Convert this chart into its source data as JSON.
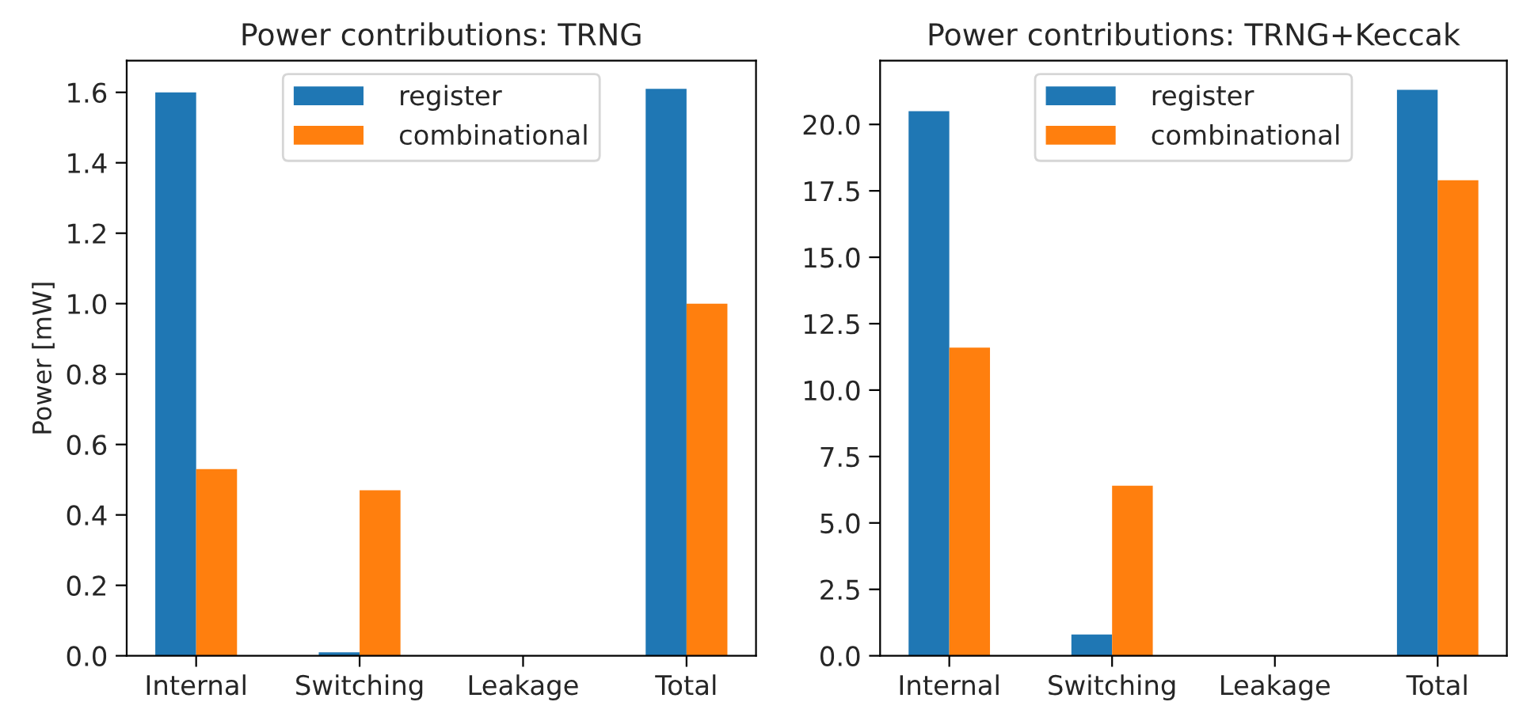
{
  "chart_data": [
    {
      "type": "bar",
      "title": "Power contributions: TRNG",
      "ylabel": "Power [mW]",
      "categories": [
        "Internal",
        "Switching",
        "Leakage",
        "Total"
      ],
      "series": [
        {
          "name": "register",
          "color": "#1f77b4",
          "values": [
            1.6,
            0.01,
            0,
            1.61
          ]
        },
        {
          "name": "combinational",
          "color": "#ff7f0e",
          "values": [
            0.53,
            0.47,
            0,
            1.0
          ]
        }
      ],
      "ylim": [
        0,
        1.69
      ],
      "yticks": [
        {
          "value": 0,
          "label": "0.0"
        },
        0.2,
        0.4,
        0.6,
        0.8,
        {
          "value": 1,
          "label": "1.0"
        },
        1.2,
        1.4,
        1.6
      ],
      "legend": "top"
    },
    {
      "type": "bar",
      "title": "Power contributions: TRNG+Keccak",
      "categories": [
        "Internal",
        "Switching",
        "Leakage",
        "Total"
      ],
      "series": [
        {
          "name": "register",
          "color": "#1f77b4",
          "values": [
            20.5,
            0.8,
            0,
            21.3
          ]
        },
        {
          "name": "combinational",
          "color": "#ff7f0e",
          "values": [
            11.6,
            6.4,
            0,
            17.9
          ]
        }
      ],
      "ylim": [
        0,
        22.4
      ],
      "yticks": [
        {
          "value": 0,
          "label": "0.0"
        },
        2.5,
        {
          "value": 5,
          "label": "5.0"
        },
        7.5,
        {
          "value": 10,
          "label": "10.0"
        },
        12.5,
        {
          "value": 15,
          "label": "15.0"
        },
        17.5,
        {
          "value": 20,
          "label": "20.0"
        }
      ],
      "legend": "top"
    }
  ]
}
